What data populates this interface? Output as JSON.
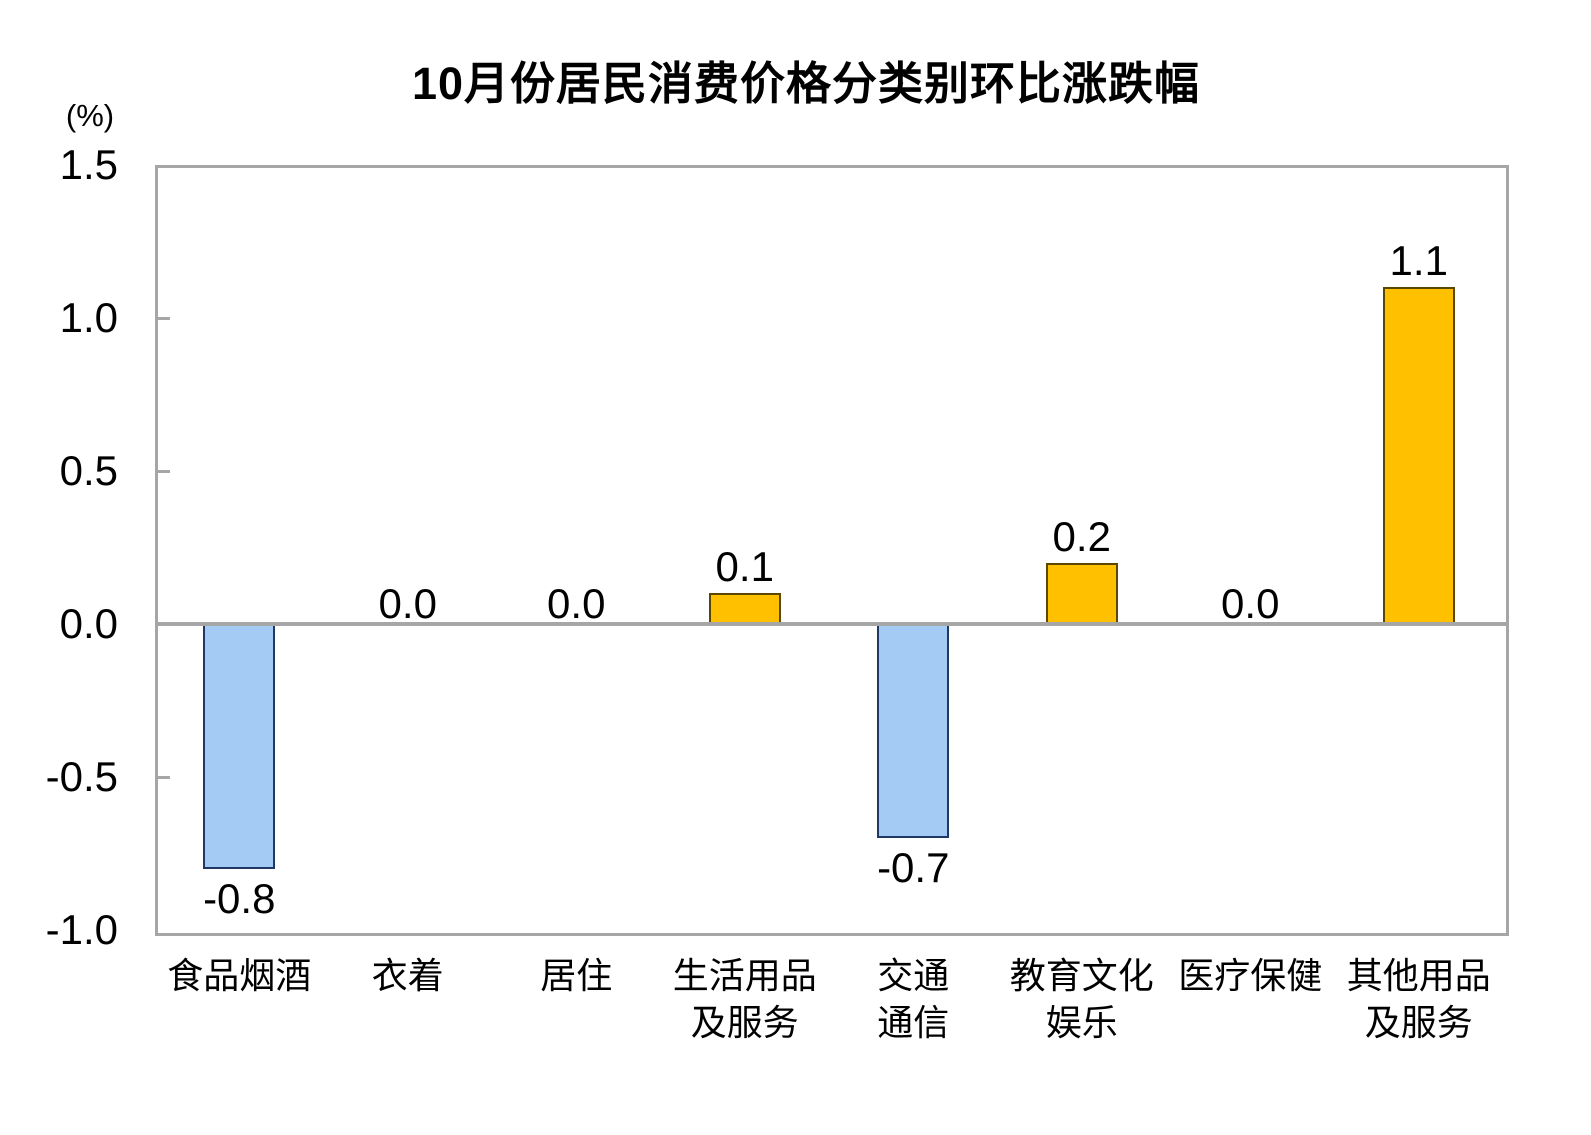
{
  "chart_data": {
    "type": "bar",
    "title": "10月份居民消费价格分类别环比涨跌幅",
    "ylabel": "(%)",
    "xlabel": "",
    "categories": [
      [
        "食品烟酒"
      ],
      [
        "衣着"
      ],
      [
        "居住"
      ],
      [
        "生活用品",
        "及服务"
      ],
      [
        "交通",
        "通信"
      ],
      [
        "教育文化",
        "娱乐"
      ],
      [
        "医疗保健"
      ],
      [
        "其他用品",
        "及服务"
      ]
    ],
    "values": [
      -0.8,
      0.0,
      0.0,
      0.1,
      -0.7,
      0.2,
      0.0,
      1.1
    ],
    "data_labels": [
      "-0.8",
      "0.0",
      "0.0",
      "0.1",
      "-0.7",
      "0.2",
      "0.0",
      "1.1"
    ],
    "ylim": [
      -1.0,
      1.5
    ],
    "y_ticks": [
      1.5,
      1.0,
      0.5,
      0.0,
      -0.5,
      -1.0
    ],
    "y_tick_labels": [
      "1.5",
      "1.0",
      "0.5",
      "0.0",
      "-0.5",
      "-1.0"
    ],
    "side_ticks": [
      1.0,
      0.5,
      -0.5
    ],
    "grid": false,
    "legend": false,
    "colors": {
      "positive_fill": "#FFC000",
      "positive_border": "#5C4700",
      "negative_fill": "#A3CBF3",
      "negative_border": "#1F3864",
      "axis_frame": "#A6A6A6",
      "text": "#000000",
      "background": "#FFFFFF"
    }
  }
}
